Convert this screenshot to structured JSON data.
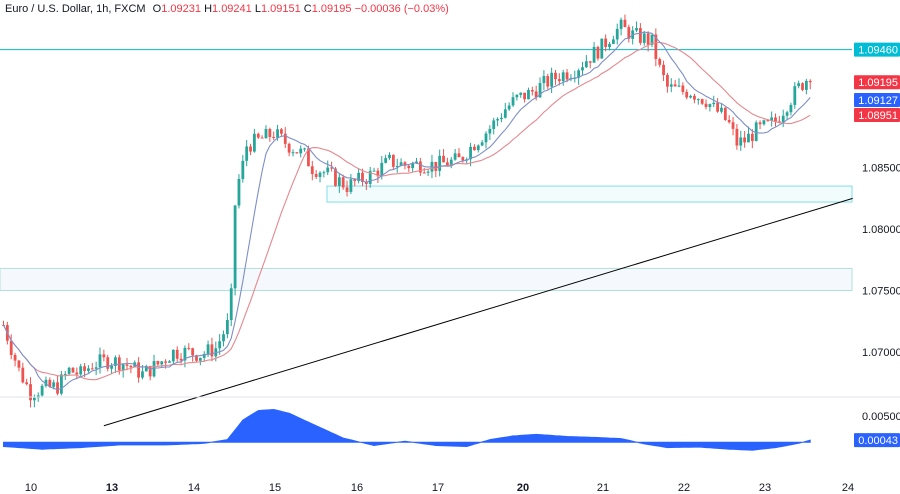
{
  "header": {
    "symbol": "Euro / U.S. Dollar, 1h, FXCM",
    "o_label": "O",
    "o_value": "1.09231",
    "h_label": "H",
    "h_value": "1.09241",
    "l_label": "L",
    "l_value": "1.09151",
    "c_label": "C",
    "c_value": "1.09195",
    "change": "−0.00036 (−0.03%)"
  },
  "colors": {
    "bull": "#26a69a",
    "bear": "#ef5350",
    "sma_fast": "#7e8fc6",
    "sma_slow": "#e5888f",
    "hline": "#00bcd4",
    "trendline": "#000000",
    "zone_border": "#80deea",
    "zone_fill": "#e0f7fa",
    "zone2_border": "#b2dfdb",
    "osc": "#2962ff",
    "badge_price": "#f23645",
    "badge_fast": "#2962ff",
    "badge_hline": "#00bcd4"
  },
  "chart_data": {
    "type": "candlestick",
    "title": "Euro / U.S. Dollar, 1h, FXCM",
    "price_axis": {
      "range": [
        1.0665,
        1.0975
      ],
      "ticks": [
        "1.08500",
        "1.08000",
        "1.07500",
        "1.07000"
      ],
      "tick_values": [
        1.085,
        1.08,
        1.075,
        1.07
      ]
    },
    "time_axis": {
      "labels": [
        "10",
        "13",
        "14",
        "15",
        "16",
        "17",
        "20",
        "21",
        "22",
        "23",
        "24"
      ],
      "bold": [
        "13",
        "20"
      ]
    },
    "price_path_control_points": [
      [
        0,
        1.0722
      ],
      [
        4,
        1.0685
      ],
      [
        7,
        1.0667
      ],
      [
        10,
        1.067
      ],
      [
        14,
        1.0672
      ],
      [
        17,
        1.0685
      ],
      [
        20,
        1.0682
      ],
      [
        23,
        1.069
      ],
      [
        27,
        1.0693
      ],
      [
        30,
        1.0692
      ],
      [
        33,
        1.0688
      ],
      [
        36,
        1.0682
      ],
      [
        40,
        1.069
      ],
      [
        44,
        1.07
      ],
      [
        48,
        1.07
      ],
      [
        51,
        1.0698
      ],
      [
        55,
        1.0703
      ],
      [
        58,
        1.0722
      ],
      [
        59,
        1.0745
      ],
      [
        60,
        1.082
      ],
      [
        61,
        1.084
      ],
      [
        62,
        1.0852
      ],
      [
        63,
        1.0868
      ],
      [
        66,
        1.0872
      ],
      [
        70,
        1.0878
      ],
      [
        74,
        1.0868
      ],
      [
        78,
        1.086
      ],
      [
        80,
        1.085
      ],
      [
        82,
        1.0848
      ],
      [
        85,
        1.0843
      ],
      [
        89,
        1.0835
      ],
      [
        91,
        1.0838
      ],
      [
        94,
        1.0842
      ],
      [
        97,
        1.0848
      ],
      [
        100,
        1.0855
      ],
      [
        104,
        1.0852
      ],
      [
        108,
        1.0853
      ],
      [
        112,
        1.0852
      ],
      [
        115,
        1.0854
      ],
      [
        118,
        1.0856
      ],
      [
        122,
        1.087
      ],
      [
        126,
        1.0882
      ],
      [
        130,
        1.0898
      ],
      [
        133,
        1.0906
      ],
      [
        136,
        1.091
      ],
      [
        140,
        1.0918
      ],
      [
        144,
        1.0925
      ],
      [
        148,
        1.093
      ],
      [
        151,
        1.0938
      ],
      [
        155,
        1.0948
      ],
      [
        158,
        1.096
      ],
      [
        160,
        1.0964
      ],
      [
        163,
        1.0958
      ],
      [
        166,
        1.0955
      ],
      [
        168,
        1.0952
      ],
      [
        170,
        1.093
      ],
      [
        172,
        1.0915
      ],
      [
        176,
        1.0912
      ],
      [
        178,
        1.0912
      ],
      [
        180,
        1.0908
      ],
      [
        182,
        1.0905
      ],
      [
        184,
        1.0898
      ],
      [
        186,
        1.0893
      ],
      [
        188,
        1.0885
      ],
      [
        190,
        1.087
      ],
      [
        192,
        1.0872
      ],
      [
        195,
        1.088
      ],
      [
        198,
        1.0884
      ],
      [
        200,
        1.0888
      ],
      [
        203,
        1.0902
      ],
      [
        206,
        1.0915
      ],
      [
        208,
        1.0922
      ],
      [
        209,
        1.092
      ]
    ],
    "horizontal_line": {
      "value": 1.0946,
      "label": "1.09460"
    },
    "zone_upper": [
      1.0822,
      1.0835
    ],
    "zone_lower": [
      1.075,
      1.0768
    ],
    "trendline": {
      "from": [
        26,
        1.064
      ],
      "to": [
        220,
        1.0825
      ]
    },
    "badges": [
      {
        "label": "1.09460",
        "series": "hline"
      },
      {
        "label": "1.09195",
        "series": "close"
      },
      {
        "label": "1.09127",
        "series": "sma_fast"
      },
      {
        "label": "1.08951",
        "series": "sma_slow"
      }
    ],
    "oscillator": {
      "type": "area",
      "range": [
        -0.0006,
        0.0008
      ],
      "ticks": [
        "0.00500"
      ],
      "last_label": "0.00043",
      "control_points": [
        [
          0,
          -8e-05
        ],
        [
          10,
          -0.00013
        ],
        [
          20,
          -0.0001
        ],
        [
          30,
          -5e-05
        ],
        [
          42,
          -5e-05
        ],
        [
          52,
          -2e-05
        ],
        [
          58,
          5e-05
        ],
        [
          62,
          0.00042
        ],
        [
          66,
          0.0006
        ],
        [
          70,
          0.00062
        ],
        [
          74,
          0.00055
        ],
        [
          82,
          0.00028
        ],
        [
          88,
          8e-05
        ],
        [
          96,
          -6e-05
        ],
        [
          104,
          2e-05
        ],
        [
          112,
          -6e-05
        ],
        [
          120,
          -8e-05
        ],
        [
          126,
          5e-05
        ],
        [
          132,
          0.00012
        ],
        [
          138,
          0.00015
        ],
        [
          146,
          0.00011
        ],
        [
          154,
          9e-05
        ],
        [
          160,
          7e-05
        ],
        [
          166,
          -3e-05
        ],
        [
          172,
          -0.0001
        ],
        [
          180,
          -9e-05
        ],
        [
          188,
          -0.00013
        ],
        [
          194,
          -0.00015
        ],
        [
          200,
          -0.0001
        ],
        [
          206,
          -2e-05
        ],
        [
          209,
          4e-05
        ]
      ]
    }
  }
}
